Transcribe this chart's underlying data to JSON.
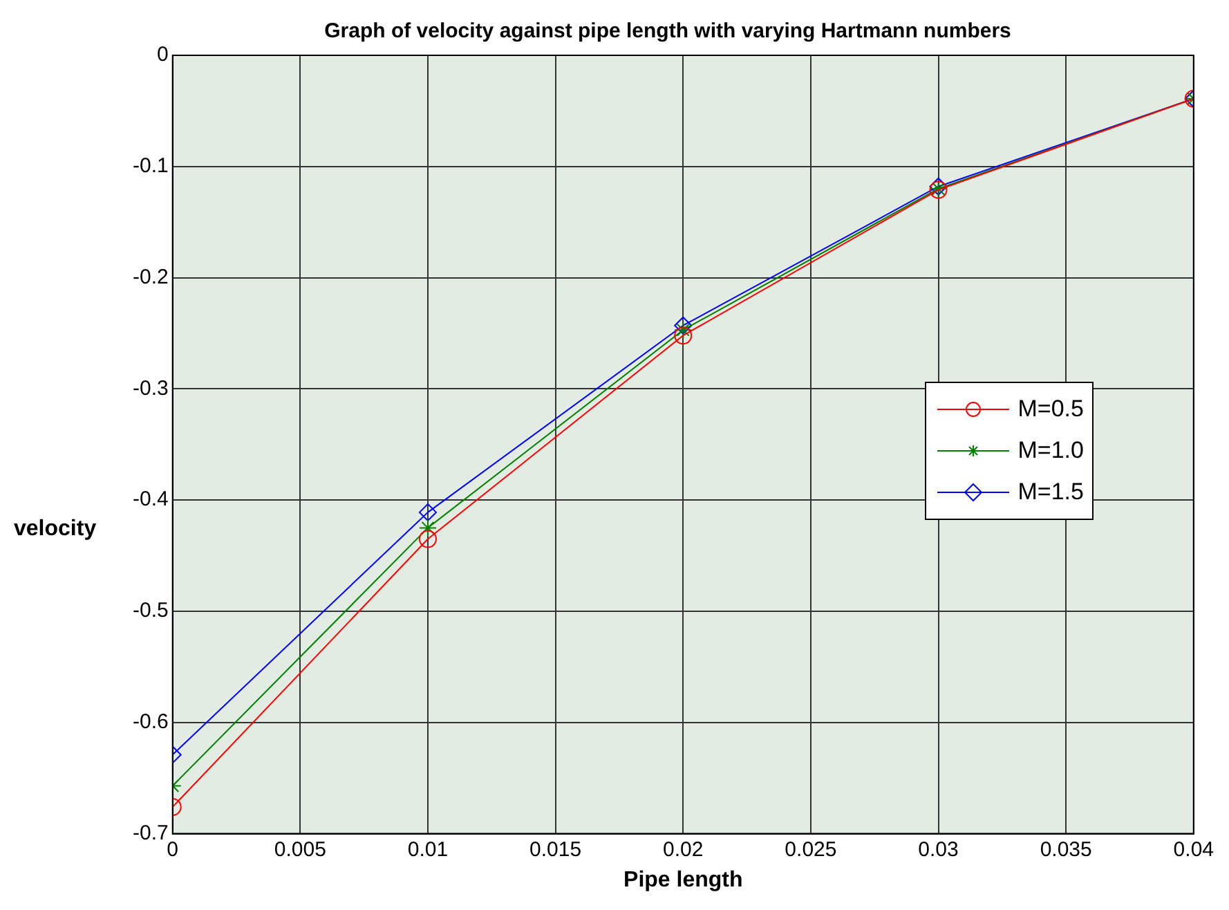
{
  "chart_data": {
    "type": "line",
    "title": "Graph of velocity against pipe length with varying Hartmann numbers",
    "xlabel": "Pipe length",
    "ylabel": "velocity",
    "x": [
      0,
      0.01,
      0.02,
      0.03,
      0.04
    ],
    "series": [
      {
        "name": "M=0.5",
        "color": "#ff0000",
        "marker": "circle",
        "values": [
          -0.676,
          -0.435,
          -0.252,
          -0.121,
          -0.039
        ]
      },
      {
        "name": "M=1.0",
        "color": "#008000",
        "marker": "cross",
        "values": [
          -0.657,
          -0.425,
          -0.247,
          -0.12,
          -0.039
        ]
      },
      {
        "name": "M=1.5",
        "color": "#0000ff",
        "marker": "diamond",
        "values": [
          -0.629,
          -0.411,
          -0.243,
          -0.118,
          -0.039
        ]
      }
    ],
    "xlim": [
      0,
      0.04
    ],
    "xticks": [
      0,
      0.005,
      0.01,
      0.015,
      0.02,
      0.025,
      0.03,
      0.035,
      0.04
    ],
    "ylim": [
      -0.7,
      0
    ],
    "yticks": [
      -0.7,
      -0.6,
      -0.5,
      -0.4,
      -0.3,
      -0.2,
      -0.1,
      0
    ],
    "grid": true,
    "legend": "right",
    "line_style": "solid"
  }
}
